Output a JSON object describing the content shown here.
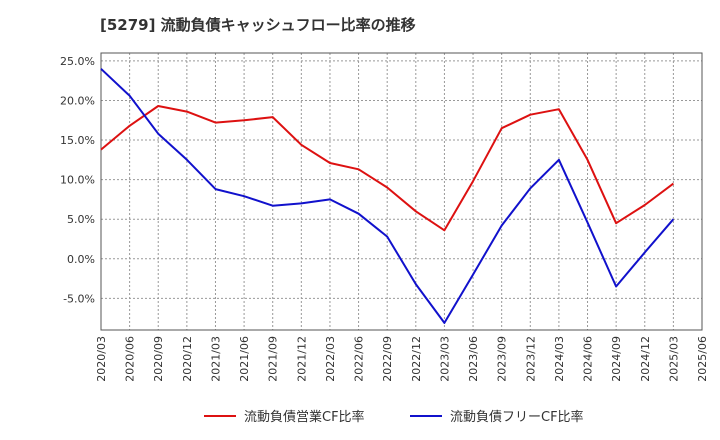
{
  "title": "[5279]  流動負債キャッシュフロー比率の推移",
  "chart_data": {
    "type": "line",
    "title": "[5279]  流動負債キャッシュフロー比率の推移",
    "x": [
      "2020/03",
      "2020/06",
      "2020/09",
      "2020/12",
      "2021/03",
      "2021/06",
      "2021/09",
      "2021/12",
      "2022/03",
      "2022/06",
      "2022/09",
      "2022/12",
      "2023/03",
      "2023/06",
      "2023/09",
      "2023/12",
      "2024/03",
      "2024/06",
      "2024/09",
      "2024/12",
      "2025/03",
      "2025/06"
    ],
    "yticks": [
      "25.0%",
      "20.0%",
      "15.0%",
      "10.0%",
      "5.0%",
      "0.0%",
      "-5.0%"
    ],
    "ylim": [
      -9.0,
      26.0
    ],
    "grid": true,
    "legend_position": "bottom",
    "series": [
      {
        "name": "流動負債営業CF比率",
        "color": "#dd1111",
        "values": [
          13.8,
          16.8,
          19.3,
          18.6,
          17.2,
          17.5,
          17.9,
          14.4,
          12.1,
          11.3,
          9.0,
          6.0,
          3.6,
          9.8,
          16.5,
          18.2,
          18.9,
          12.5,
          4.5,
          6.8,
          9.5,
          null
        ]
      },
      {
        "name": "流動負債フリーCF比率",
        "color": "#1111cc",
        "values": [
          24.0,
          20.6,
          15.8,
          12.5,
          8.8,
          7.9,
          6.7,
          7.0,
          7.5,
          5.7,
          2.8,
          -3.2,
          -8.1,
          -2.0,
          4.2,
          8.9,
          12.5,
          4.6,
          -3.5,
          0.8,
          5.0,
          null
        ]
      }
    ]
  }
}
